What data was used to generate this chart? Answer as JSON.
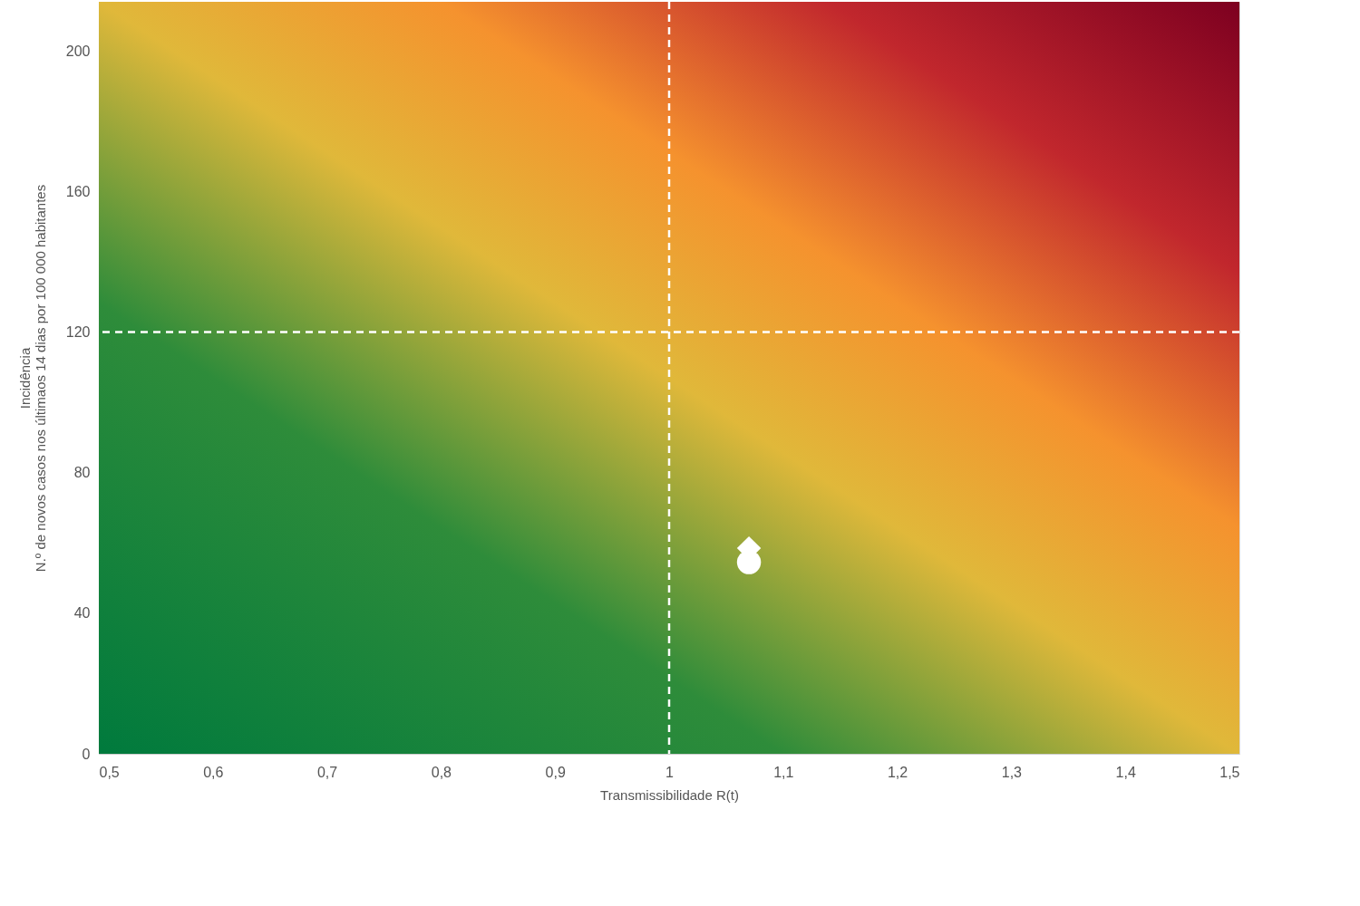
{
  "chart_data": {
    "type": "scatter",
    "xlabel": "Transmissibilidade R(t)",
    "ylabel": "Incidência\nN.º de novos casos nos últimaos 14 dias por 100 000 habitantes",
    "xlim": [
      0.5,
      1.5
    ],
    "xticks": [
      {
        "value": 0.5,
        "label": "0,5"
      },
      {
        "value": 0.6,
        "label": "0,6"
      },
      {
        "value": 0.7,
        "label": "0,7"
      },
      {
        "value": 0.8,
        "label": "0,8"
      },
      {
        "value": 0.9,
        "label": "0,9"
      },
      1,
      {
        "value": 1.1,
        "label": "1,1"
      },
      {
        "value": 1.2,
        "label": "1,2"
      },
      {
        "value": 1.3,
        "label": "1,3"
      },
      {
        "value": 1.4,
        "label": "1,4"
      },
      {
        "value": 1.5,
        "label": "1,5"
      }
    ],
    "ylim": [
      0,
      214
    ],
    "yticks": [
      0,
      40,
      80,
      120,
      160,
      200
    ],
    "series": [
      {
        "color": "#ffffff",
        "marker": "diamond",
        "x": [
          1.07
        ],
        "values": [
          58.5
        ]
      },
      {
        "color": "#ffffff",
        "marker": "circle",
        "x": [
          1.07
        ],
        "values": [
          54.5
        ]
      }
    ],
    "ref_lines": [
      {
        "axis": "x",
        "value": 1,
        "color": "#ffffff",
        "line_style": "dashed"
      },
      {
        "axis": "y",
        "value": 120,
        "color": "#ffffff",
        "line_style": "dashed"
      }
    ]
  }
}
